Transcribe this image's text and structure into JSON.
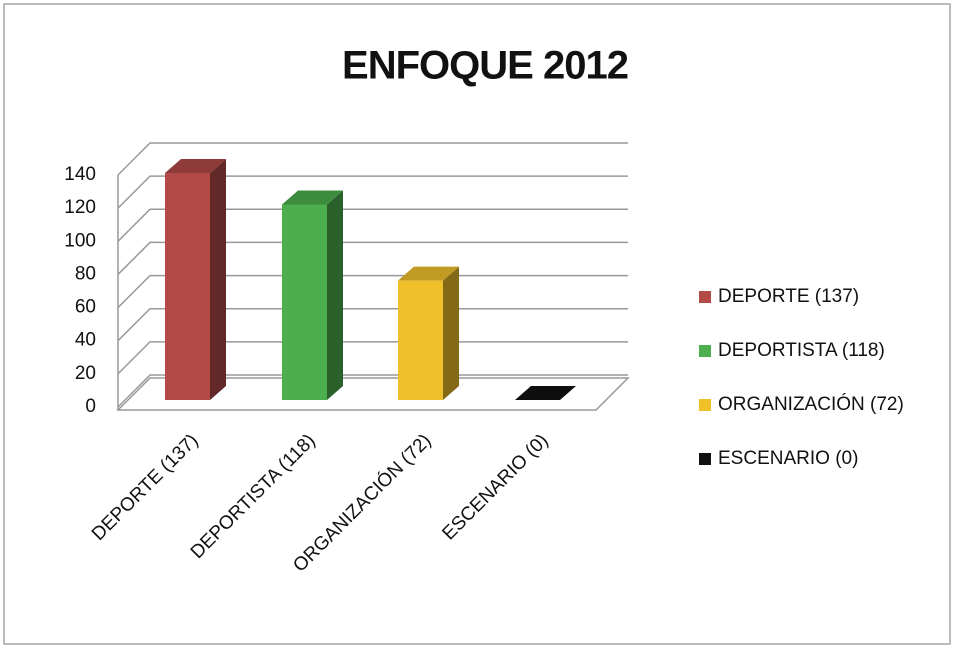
{
  "chart_data": {
    "type": "bar",
    "title": "ENFOQUE 2012",
    "categories": [
      "DEPORTE (137)",
      "DEPORTISTA (118)",
      "ORGANIZACIÓN (72)",
      "ESCENARIO (0)"
    ],
    "values": [
      137,
      118,
      72,
      0
    ],
    "colors": [
      "#b34a48",
      "#4cae4c",
      "#f0c02a",
      "#111111"
    ],
    "ylim": [
      0,
      140
    ],
    "yticks": [
      0,
      20,
      40,
      60,
      80,
      100,
      120,
      140
    ],
    "grid": true,
    "legend": "right"
  }
}
